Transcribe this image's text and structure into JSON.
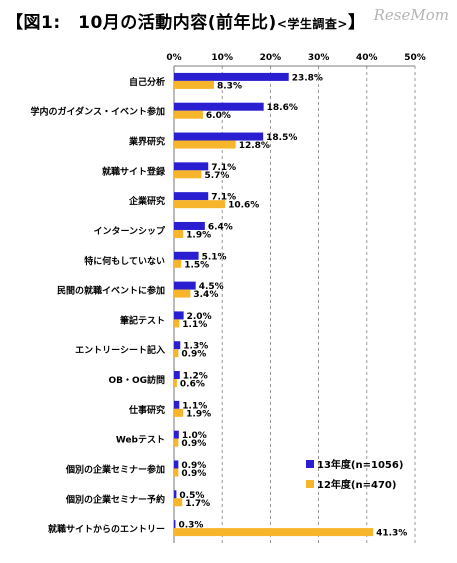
{
  "title": {
    "main": "【図1:　10月の活動内容(前年比)",
    "sub": "<学生調査>",
    "close": "】"
  },
  "watermark": "ReseMom",
  "chart_data": {
    "type": "bar",
    "orientation": "horizontal",
    "title": "【図1:　10月の活動内容(前年比)<学生調査>】",
    "xlabel": "",
    "ylabel": "",
    "xlim": [
      0,
      50
    ],
    "x_ticks": [
      "0%",
      "10%",
      "20%",
      "30%",
      "40%",
      "50%"
    ],
    "grid": "vertical-dashed",
    "legend_position": "bottom-right",
    "categories": [
      "自己分析",
      "学内のガイダンス・イベント参加",
      "業界研究",
      "就職サイト登録",
      "企業研究",
      "インターンシップ",
      "特に何もしていない",
      "民間の就職イベントに参加",
      "筆記テスト",
      "エントリーシート記入",
      "OB・OG訪問",
      "仕事研究",
      "Webテスト",
      "個別の企業セミナー参加",
      "個別の企業セミナー予約",
      "就職サイトからのエントリー"
    ],
    "series": [
      {
        "name": "13年度(n=1056)",
        "color": "#2a1fd0",
        "values": [
          23.8,
          18.6,
          18.5,
          7.1,
          7.1,
          6.4,
          5.1,
          4.5,
          2.0,
          1.3,
          1.2,
          1.1,
          1.0,
          0.9,
          0.5,
          0.3
        ],
        "labels": [
          "23.8%",
          "18.6%",
          "18.5%",
          "7.1%",
          "7.1%",
          "6.4%",
          "5.1%",
          "4.5%",
          "2.0%",
          "1.3%",
          "1.2%",
          "1.1%",
          "1.0%",
          "0.9%",
          "0.5%",
          "0.3%"
        ]
      },
      {
        "name": "12年度(n=470)",
        "color": "#f7b52c",
        "values": [
          8.3,
          6.0,
          12.8,
          5.7,
          10.6,
          1.9,
          1.5,
          3.4,
          1.1,
          0.9,
          0.6,
          1.9,
          0.9,
          0.9,
          1.7,
          41.3
        ],
        "labels": [
          "8.3%",
          "6.0%",
          "12.8%",
          "5.7%",
          "10.6%",
          "1.9%",
          "1.5%",
          "3.4%",
          "1.1%",
          "0.9%",
          "0.6%",
          "1.9%",
          "0.9%",
          "0.9%",
          "1.7%",
          "41.3%"
        ]
      }
    ]
  }
}
